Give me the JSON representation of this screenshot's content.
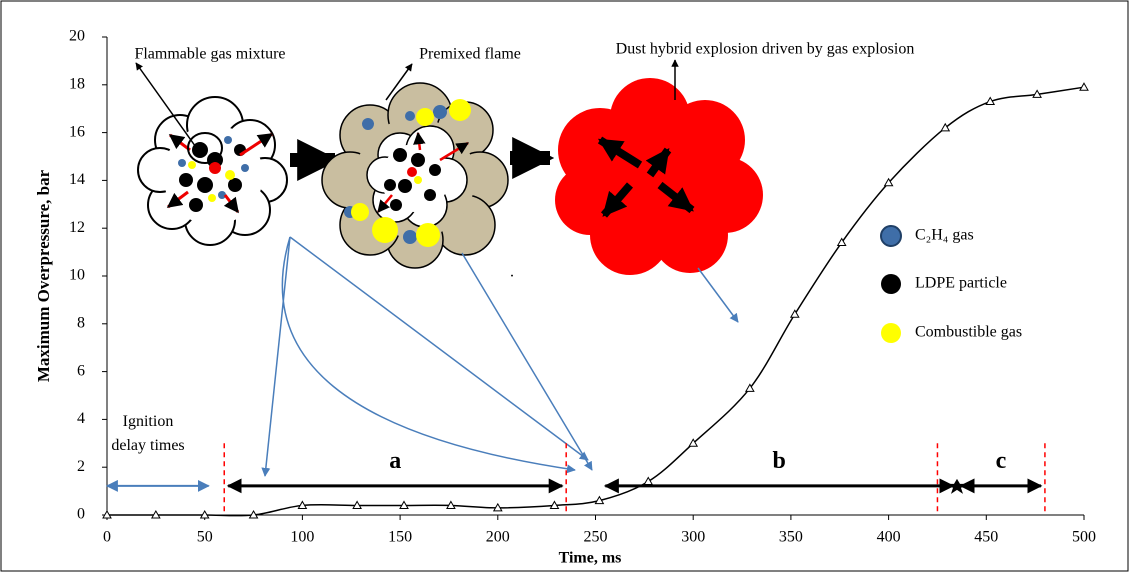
{
  "chart_data": {
    "type": "line",
    "x_label": "Time, ms",
    "y_label": "Maximum Overpressure, bar",
    "x": [
      0,
      25,
      50,
      75,
      100,
      128,
      152,
      176,
      200,
      229,
      252,
      277,
      300,
      329,
      352,
      376,
      400,
      429,
      452,
      476,
      500
    ],
    "series": [
      {
        "name": "Maximum overpressure",
        "color": "#000000",
        "values": [
          0,
          0,
          0,
          0,
          0.4,
          0.4,
          0.4,
          0.4,
          0.3,
          0.4,
          0.6,
          1.4,
          3.0,
          5.3,
          8.4,
          11.4,
          13.9,
          16.2,
          17.3,
          17.6,
          17.9
        ]
      }
    ],
    "xlim": [
      0,
      500
    ],
    "xticks": [
      0,
      50,
      100,
      150,
      200,
      250,
      300,
      350,
      400,
      450,
      500
    ],
    "ylim": [
      0,
      20
    ],
    "yticks": [
      0,
      2,
      4,
      6,
      8,
      10,
      12,
      14,
      16,
      18,
      20
    ],
    "dashed_lines": [
      60,
      235,
      425,
      480
    ],
    "ignition": {
      "label": "Ignition delay times",
      "start": -2,
      "end": 52
    },
    "phases": [
      {
        "label": "a",
        "start": 60,
        "end": 235
      },
      {
        "label": "b",
        "start": 253,
        "end": 435
      },
      {
        "label": "c",
        "start": 435,
        "end": 480
      }
    ],
    "annotations": [
      "Flammable gas mixture",
      "Premixed flame",
      "Dust hybrid explosion driven by gas explosion"
    ],
    "legend_items": [
      {
        "name": "C₂H₄ gas",
        "color": "#3f6ea8"
      },
      {
        "name": "LDPE particle",
        "color": "#000000"
      },
      {
        "name": "Combustible gas",
        "color": "#ffff00"
      }
    ]
  }
}
